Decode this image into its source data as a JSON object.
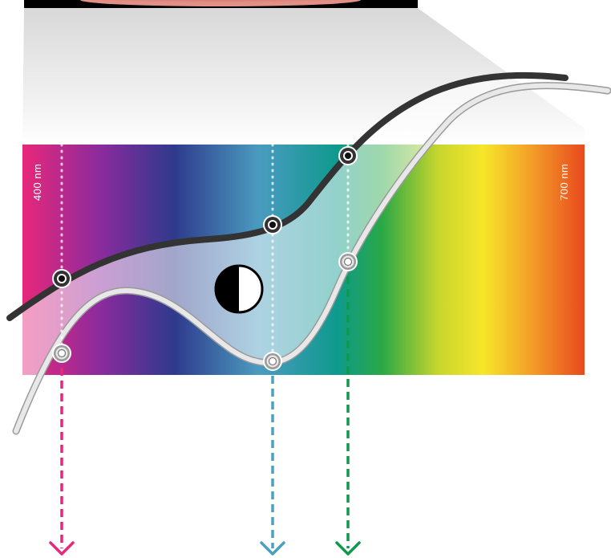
{
  "spectrum": {
    "start_label": "400 nm",
    "end_label": "700 nm",
    "colors": [
      "#e8287a",
      "#8a2b9e",
      "#2e3a8c",
      "#4a9bc0",
      "#0f9a8e",
      "#2aa845",
      "#c8d62e",
      "#f6e62a",
      "#f39a28",
      "#e8491e"
    ]
  },
  "curves": {
    "dark_curve_color": "#333333",
    "light_curve_color": "#cfcfcf"
  },
  "icons": {
    "center": "contrast-icon",
    "arrow": "chevron-down-icon",
    "marker": "circle-marker-icon"
  },
  "guides": [
    {
      "name": "pink",
      "color": "#e8287a"
    },
    {
      "name": "blue",
      "color": "#4aa0c0"
    },
    {
      "name": "green",
      "color": "#0e9a4a"
    }
  ]
}
